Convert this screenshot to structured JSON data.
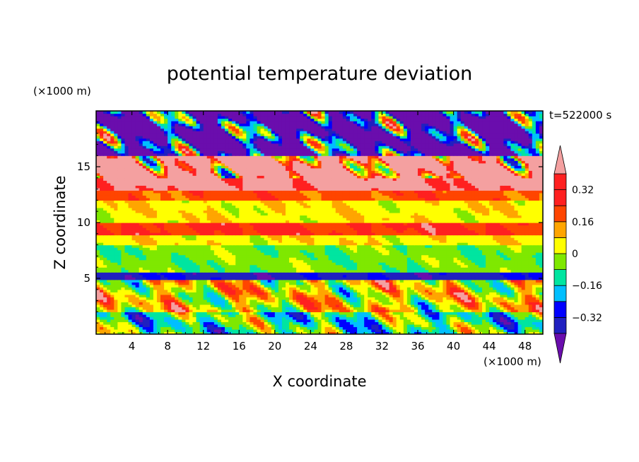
{
  "chart_data": {
    "type": "heatmap",
    "title": "potential temperature deviation",
    "xlabel": "X coordinate",
    "ylabel": "Z coordinate",
    "x_unit": "(×1000 m)",
    "y_unit": "(×1000 m)",
    "time_label": "t=522000 s",
    "xlim": [
      0,
      50
    ],
    "ylim": [
      0,
      20
    ],
    "x_ticks": [
      4,
      8,
      12,
      16,
      20,
      24,
      28,
      32,
      36,
      40,
      44,
      48
    ],
    "x_tick_labels": [
      "4",
      "8",
      "12",
      "16",
      "20",
      "24",
      "28",
      "32",
      "36",
      "40",
      "44",
      "48"
    ],
    "y_ticks": [
      5,
      10,
      15
    ],
    "y_tick_labels": [
      "5",
      "10",
      "15"
    ],
    "colorbar": {
      "levels": [
        -0.4,
        -0.32,
        -0.24,
        -0.16,
        -0.08,
        0,
        0.08,
        0.16,
        0.24,
        0.32,
        0.4
      ],
      "labeled_levels": [
        -0.32,
        -0.16,
        0,
        0.16,
        0.32
      ],
      "labels": [
        "−0.32",
        "−0.16",
        "0",
        "0.16",
        "0.32"
      ],
      "colors": [
        "#6a0dad",
        "#2020c0",
        "#0000ff",
        "#00bfff",
        "#00e5a0",
        "#7fe800",
        "#ffff00",
        "#ffa500",
        "#ff4500",
        "#ff2020",
        "#f4a0a0"
      ],
      "extend": "both"
    },
    "field_bands": [
      {
        "z_range": [
          0,
          2
        ],
        "typical_value": -0.1
      },
      {
        "z_range": [
          2,
          5
        ],
        "typical_value": 0.05
      },
      {
        "z_range": [
          5,
          5.5
        ],
        "typical_value": -0.35
      },
      {
        "z_range": [
          5.5,
          8
        ],
        "typical_value": -0.05
      },
      {
        "z_range": [
          8,
          9
        ],
        "typical_value": 0.05
      },
      {
        "z_range": [
          9,
          10
        ],
        "typical_value": 0.25
      },
      {
        "z_range": [
          10,
          12
        ],
        "typical_value": 0.05
      },
      {
        "z_range": [
          12,
          13
        ],
        "typical_value": 0.2
      },
      {
        "z_range": [
          13,
          14
        ],
        "typical_value": 0.35
      },
      {
        "z_range": [
          14,
          16
        ],
        "typical_value": 0.45
      },
      {
        "z_range": [
          16,
          20
        ],
        "typical_value": -0.45
      }
    ]
  }
}
